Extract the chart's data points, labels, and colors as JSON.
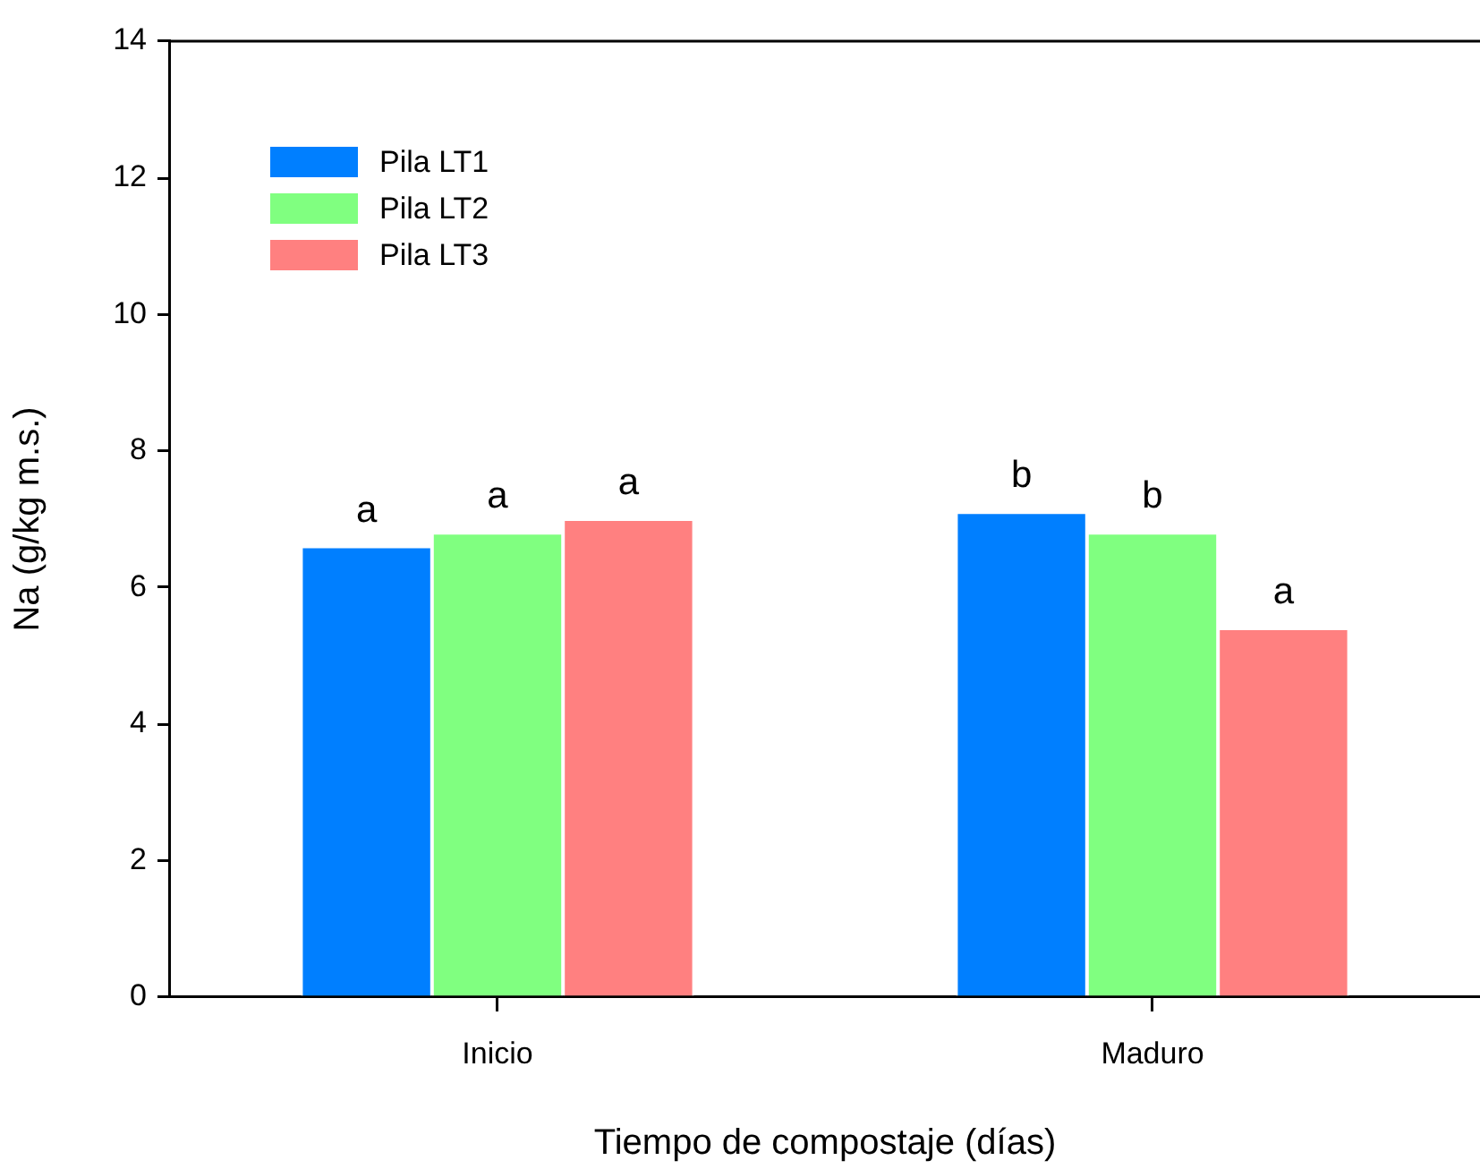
{
  "chart_data": {
    "type": "bar",
    "xlabel": "Tiempo de compostaje (días)",
    "ylabel": "Na (g/kg m.s.)",
    "categories": [
      "Inicio",
      "Maduro"
    ],
    "series": [
      {
        "name": "Pila LT1",
        "color": "#007fff",
        "values": [
          6.6,
          7.1
        ],
        "value_labels": [
          "a",
          "b"
        ]
      },
      {
        "name": "Pila LT2",
        "color": "#80ff80",
        "values": [
          6.8,
          6.8
        ],
        "value_labels": [
          "a",
          "b"
        ]
      },
      {
        "name": "Pila LT3",
        "color": "#ff8080",
        "values": [
          7.0,
          5.4
        ],
        "value_labels": [
          "a",
          "a"
        ]
      }
    ],
    "ylim": [
      0,
      14
    ],
    "yticks": [
      0,
      2,
      4,
      6,
      8,
      10,
      12,
      14
    ],
    "grid": false,
    "legend": "top left"
  }
}
